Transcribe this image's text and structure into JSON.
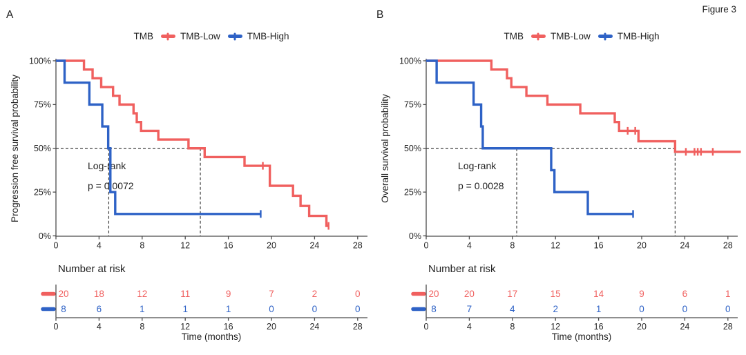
{
  "figure": {
    "label": "Figure 3"
  },
  "chart_data": [
    {
      "type": "line",
      "subtype": "kaplan-meier-step",
      "panel_label": "A",
      "ylabel": "Progression free survival probability",
      "xlabel": "Time (months)",
      "x_ticks": [
        0,
        4,
        8,
        12,
        16,
        20,
        24,
        28
      ],
      "y_tick_labels": [
        "0%",
        "25%",
        "50%",
        "75%",
        "100%"
      ],
      "y_tick_values": [
        0,
        25,
        50,
        75,
        100
      ],
      "xlim": [
        0,
        28.9
      ],
      "ylim": [
        0,
        100
      ],
      "legend": {
        "title": "TMB",
        "items": [
          {
            "label": "TMB-Low",
            "color": "#F0605F"
          },
          {
            "label": "TMB-High",
            "color": "#2E62C6"
          }
        ]
      },
      "logrank": [
        "Log-rank",
        "p = 0.0072"
      ],
      "medians_months": [
        4.9,
        13.4
      ],
      "series": [
        {
          "name": "TMB-Low",
          "color": "#F0605F",
          "points": [
            [
              0,
              100
            ],
            [
              2.6,
              95
            ],
            [
              3.4,
              90
            ],
            [
              4.2,
              85
            ],
            [
              5.3,
              80
            ],
            [
              5.9,
              75
            ],
            [
              7.2,
              70
            ],
            [
              7.5,
              65
            ],
            [
              7.9,
              60
            ],
            [
              9.5,
              55
            ],
            [
              12.3,
              50
            ],
            [
              13.8,
              45
            ],
            [
              17.5,
              40
            ],
            [
              19.85,
              28.6
            ],
            [
              22.0,
              22.9
            ],
            [
              22.7,
              17.1
            ],
            [
              23.5,
              11.4
            ],
            [
              25.1,
              5.7
            ]
          ],
          "end": 25.3,
          "censors": [
            [
              19.2,
              40
            ],
            [
              25.3,
              5.7
            ]
          ]
        },
        {
          "name": "TMB-High",
          "color": "#2E62C6",
          "points": [
            [
              0,
              100
            ],
            [
              0.8,
              87.5
            ],
            [
              3.1,
              75
            ],
            [
              4.3,
              62.5
            ],
            [
              4.85,
              50
            ],
            [
              5.05,
              25
            ],
            [
              5.5,
              12.5
            ]
          ],
          "end": 19.0,
          "censors": [
            [
              19.0,
              12.5
            ]
          ]
        }
      ],
      "risk_table": {
        "title": "Number at risk",
        "times": [
          0,
          4,
          8,
          12,
          16,
          20,
          24,
          28
        ],
        "rows": [
          {
            "name": "TMB-Low",
            "color": "#F0605F",
            "values": [
              20,
              18,
              12,
              11,
              9,
              7,
              2,
              0
            ]
          },
          {
            "name": "TMB-High",
            "color": "#2E62C6",
            "values": [
              8,
              6,
              1,
              1,
              1,
              0,
              0,
              0
            ]
          }
        ]
      }
    },
    {
      "type": "line",
      "subtype": "kaplan-meier-step",
      "panel_label": "B",
      "ylabel": "Overall survival probability",
      "xlabel": "Time (months)",
      "x_ticks": [
        0,
        4,
        8,
        12,
        16,
        20,
        24,
        28
      ],
      "y_tick_labels": [
        "0%",
        "25%",
        "50%",
        "75%",
        "100%"
      ],
      "y_tick_values": [
        0,
        25,
        50,
        75,
        100
      ],
      "xlim": [
        0,
        29.2
      ],
      "ylim": [
        0,
        100
      ],
      "legend": {
        "title": "TMB",
        "items": [
          {
            "label": "TMB-Low",
            "color": "#F0605F"
          },
          {
            "label": "TMB-High",
            "color": "#2E62C6"
          }
        ]
      },
      "logrank": [
        "Log-rank",
        "p = 0.0028"
      ],
      "medians_months": [
        8.4,
        23.1
      ],
      "series": [
        {
          "name": "TMB-Low",
          "color": "#F0605F",
          "points": [
            [
              0,
              100
            ],
            [
              6.05,
              95
            ],
            [
              7.5,
              90
            ],
            [
              7.9,
              85
            ],
            [
              9.3,
              80
            ],
            [
              11.25,
              75
            ],
            [
              14.3,
              70
            ],
            [
              17.5,
              65
            ],
            [
              17.9,
              60
            ],
            [
              19.7,
              54
            ],
            [
              23.1,
              48
            ]
          ],
          "end": 29.2,
          "censors": [
            [
              18.7,
              60
            ],
            [
              19.4,
              60
            ],
            [
              24.1,
              48
            ],
            [
              24.9,
              48
            ],
            [
              25.2,
              48
            ],
            [
              25.5,
              48
            ],
            [
              26.6,
              48
            ]
          ]
        },
        {
          "name": "TMB-High",
          "color": "#2E62C6",
          "points": [
            [
              0,
              100
            ],
            [
              0.97,
              87.5
            ],
            [
              4.4,
              75
            ],
            [
              5.1,
              62.5
            ],
            [
              5.25,
              50
            ],
            [
              11.6,
              37.5
            ],
            [
              11.9,
              25
            ],
            [
              15.0,
              12.5
            ]
          ],
          "end": 19.2,
          "censors": [
            [
              19.2,
              12.5
            ]
          ]
        }
      ],
      "risk_table": {
        "title": "Number at risk",
        "times": [
          0,
          4,
          8,
          12,
          16,
          20,
          24,
          28
        ],
        "rows": [
          {
            "name": "TMB-Low",
            "color": "#F0605F",
            "values": [
              20,
              20,
              17,
              15,
              14,
              9,
              6,
              1
            ]
          },
          {
            "name": "TMB-High",
            "color": "#2E62C6",
            "values": [
              8,
              7,
              4,
              2,
              1,
              0,
              0,
              0
            ]
          }
        ]
      }
    }
  ]
}
